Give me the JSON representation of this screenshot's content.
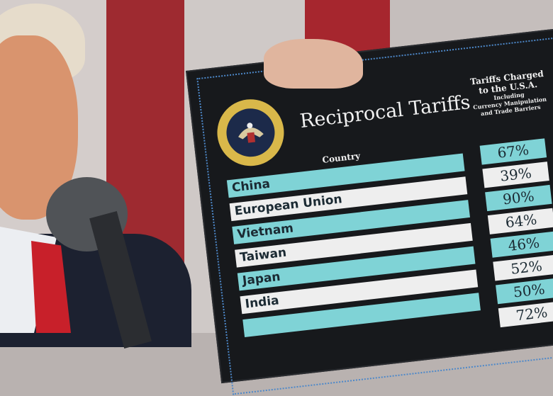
{
  "board": {
    "title": "Reciprocal Tariffs",
    "seal_text": "SEAL OF THE PRESIDENT OF THE UNITED STATES",
    "country_header": "Country",
    "tariffs_header": [
      "Tariffs Charged",
      "to the U.S.A."
    ],
    "tariffs_subheader": [
      "Including",
      "Currency Manipulation",
      "and Trade Barriers"
    ],
    "rows": [
      {
        "country": "China",
        "tariff": "67%"
      },
      {
        "country": "European Union",
        "tariff": "39%"
      },
      {
        "country": "Vietnam",
        "tariff": "90%"
      },
      {
        "country": "Taiwan",
        "tariff": "64%"
      },
      {
        "country": "Japan",
        "tariff": "46%"
      },
      {
        "country": "India",
        "tariff": "52%"
      },
      {
        "country": "",
        "tariff": "50%"
      },
      {
        "country": "",
        "tariff": "72%"
      }
    ]
  },
  "colors": {
    "teal": "#7fd3d6",
    "board": "#17191c",
    "flag_red": "#a8242c",
    "tie_red": "#c8202a"
  }
}
